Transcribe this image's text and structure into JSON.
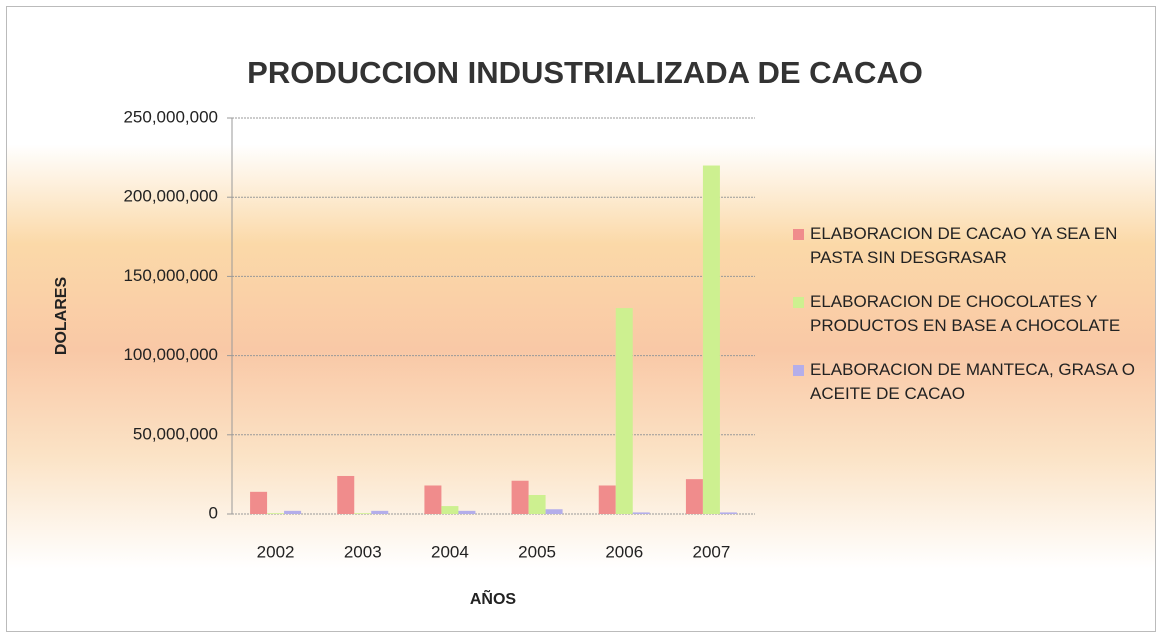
{
  "chart_data": {
    "type": "bar",
    "title": "PRODUCCION INDUSTRIALIZADA DE CACAO",
    "y_label": "DOLARES",
    "x_label": "AÑOS",
    "categories": [
      "2002",
      "2003",
      "2004",
      "2005",
      "2006",
      "2007"
    ],
    "series": [
      {
        "name": "ELABORACION DE CACAO YA SEA EN PASTA SIN DESGRASAR",
        "color": "#f08c8c",
        "values": [
          14000000,
          24000000,
          18000000,
          21000000,
          18000000,
          22000000
        ]
      },
      {
        "name": "ELABORACION DE CHOCOLATES Y PRODUCTOS EN BASE A CHOCOLATE",
        "color": "#cdf090",
        "values": [
          500000,
          500000,
          5000000,
          12000000,
          130000000,
          220000000
        ]
      },
      {
        "name": "ELABORACION DE MANTECA, GRASA O ACEITE DE CACAO",
        "color": "#b4aeea",
        "values": [
          2000000,
          2000000,
          2000000,
          3000000,
          1000000,
          1000000
        ]
      }
    ],
    "ylim": [
      0,
      250000000
    ],
    "yticks": [
      0,
      {
        "value": 50000000,
        "label": "50,000,000"
      },
      {
        "value": 100000000,
        "label": "100,000,000"
      },
      {
        "value": 150000000,
        "label": "150,000,000"
      },
      {
        "value": 200000000,
        "label": "200,000,000"
      },
      {
        "value": 250000000,
        "label": "250,000,000"
      }
    ],
    "grid": true,
    "legend": "right"
  }
}
